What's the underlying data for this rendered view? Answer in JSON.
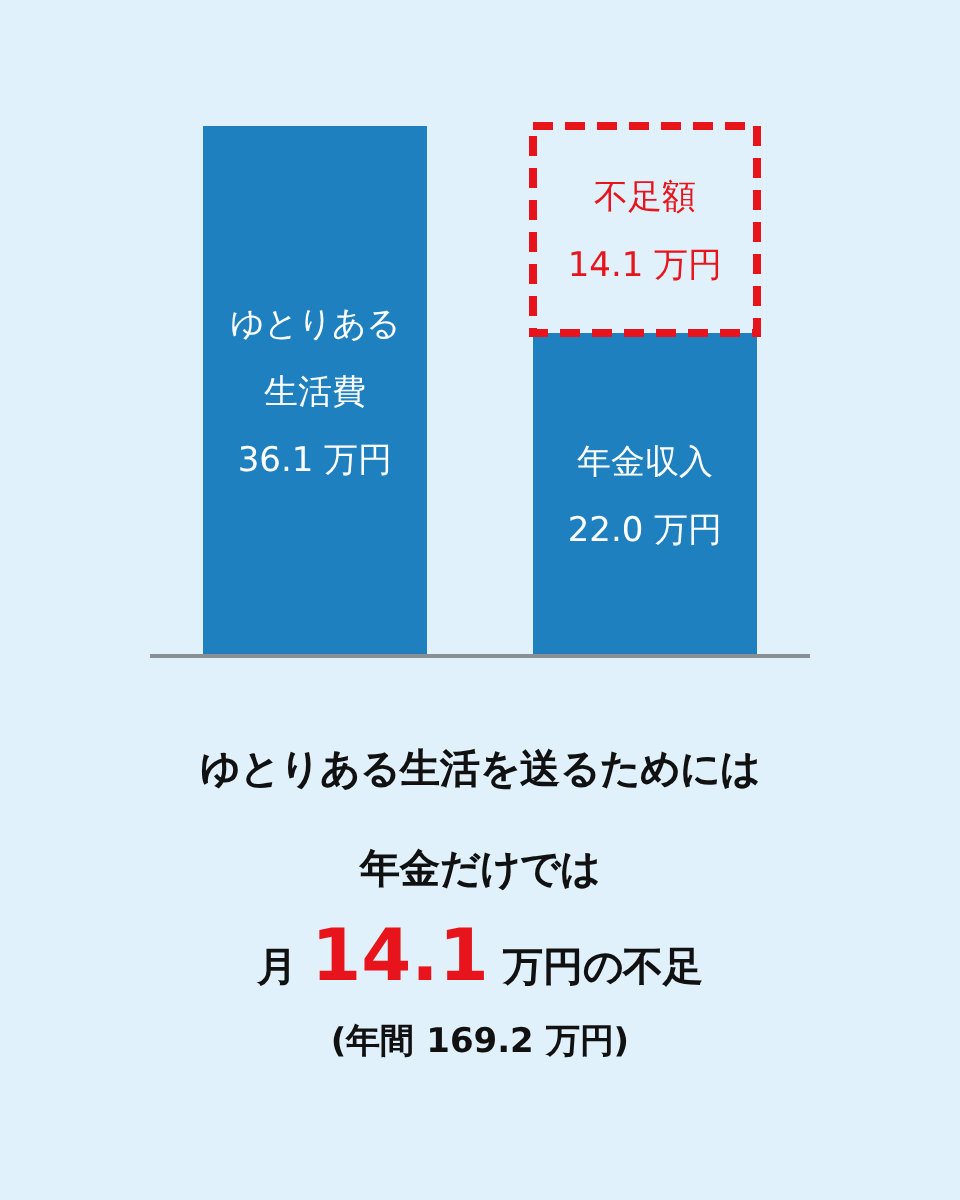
{
  "chart_data": {
    "type": "bar",
    "stacked": true,
    "categories": [
      null,
      null
    ],
    "series": [
      {
        "color": "#1f80bf",
        "values": [
          36.1,
          22.0
        ],
        "value_labels": [
          "ゆとりある生活費\n36.1 万円",
          "年金収入\n22.0 万円"
        ]
      },
      {
        "color": "#e8141c",
        "line_style": "dashed",
        "values": [
          null,
          14.1
        ],
        "value_labels": [
          null,
          "不足額\n14.1 万円"
        ]
      }
    ],
    "annotations": [
      "ゆとりある生活を送るためには",
      "年金だけでは",
      "月 14.1 万円の不足",
      "(年間 169.2 万円)"
    ]
  }
}
